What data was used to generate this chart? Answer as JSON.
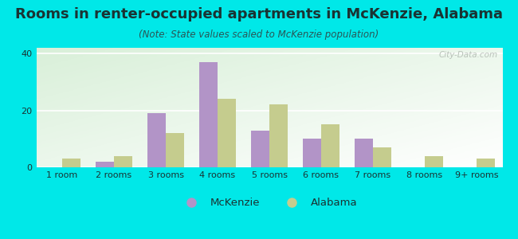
{
  "title": "Rooms in renter-occupied apartments in McKenzie, Alabama",
  "subtitle": "(Note: State values scaled to McKenzie population)",
  "categories": [
    "1 room",
    "2 rooms",
    "3 rooms",
    "4 rooms",
    "5 rooms",
    "6 rooms",
    "7 rooms",
    "8 rooms",
    "9+ rooms"
  ],
  "mckenzie_values": [
    0,
    2,
    19,
    37,
    13,
    10,
    10,
    0,
    0
  ],
  "alabama_values": [
    3,
    4,
    12,
    24,
    22,
    15,
    7,
    4,
    3
  ],
  "mckenzie_color": "#b294c7",
  "alabama_color": "#c5cc8e",
  "background_color": "#00e8e8",
  "plot_bg_color": "#e6f5e6",
  "title_color": "#1a3333",
  "subtitle_color": "#2a5555",
  "ylim": [
    0,
    42
  ],
  "yticks": [
    0,
    20,
    40
  ],
  "bar_width": 0.35,
  "title_fontsize": 13,
  "subtitle_fontsize": 8.5,
  "tick_fontsize": 8,
  "legend_fontsize": 9.5,
  "watermark_text": "City-Data.com",
  "watermark_color": "#b0b8b0"
}
